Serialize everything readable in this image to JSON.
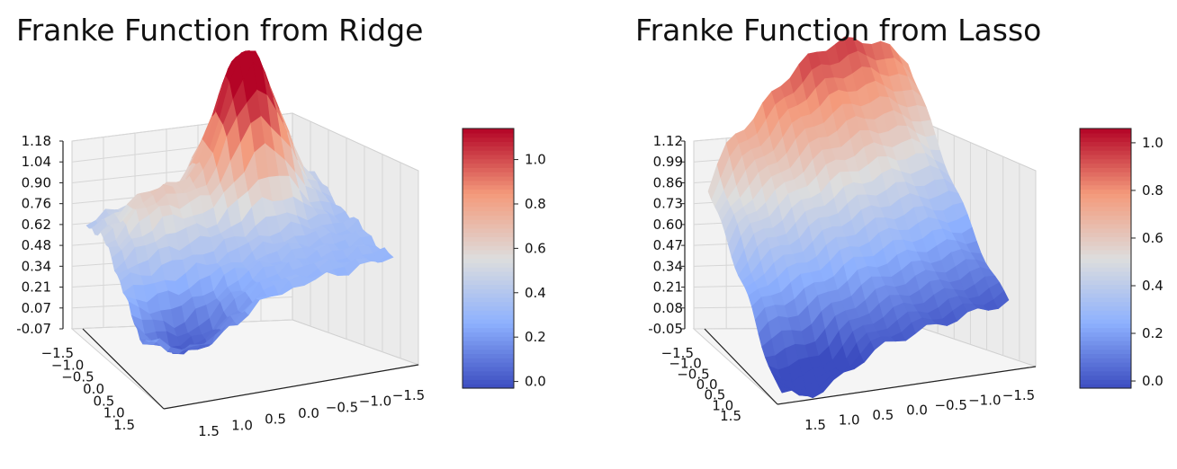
{
  "chart_data": [
    {
      "type": "surface",
      "title": "Franke Function from Ridge",
      "zticks": [
        "1.18",
        "1.04",
        "0.90",
        "0.76",
        "0.62",
        "0.48",
        "0.34",
        "0.21",
        "0.07",
        "-0.07"
      ],
      "yticks": [
        "−1.5",
        "−1.0",
        "−0.5",
        "0.0",
        "0.5",
        "1.0",
        "1.5"
      ],
      "xticks": [
        "1.5",
        "1.0",
        "0.5",
        "0.0",
        "−0.5",
        "−1.0",
        "−1.5"
      ],
      "colorbar": {
        "ticks": [
          "1.0",
          "0.8",
          "0.6",
          "0.4",
          "0.2",
          "0.0"
        ],
        "range": [
          -0.03,
          1.14
        ],
        "colormap": "coolwarm"
      },
      "surface": {
        "peak_value": 1.14,
        "min_value": -0.03,
        "shape": "single-peak"
      }
    },
    {
      "type": "surface",
      "title": "Franke Function from Lasso",
      "zticks": [
        "1.12",
        "0.99",
        "0.86",
        "0.73",
        "0.60",
        "0.47",
        "0.34",
        "0.21",
        "0.08",
        "-0.05"
      ],
      "yticks": [
        "−1.5",
        "−1.0",
        "−0.5",
        "0.0",
        "0.5",
        "1.0",
        "1.5"
      ],
      "xticks": [
        "1.5",
        "1.0",
        "0.5",
        "0.0",
        "−0.5",
        "−1.0",
        "−1.5"
      ],
      "colorbar": {
        "ticks": [
          "1.0",
          "0.8",
          "0.6",
          "0.4",
          "0.2",
          "0.0"
        ],
        "range": [
          -0.03,
          1.06
        ],
        "colormap": "coolwarm"
      },
      "surface": {
        "peak_value": 1.06,
        "min_value": -0.03,
        "shape": "ramp"
      }
    }
  ],
  "colors": {
    "cool": "#3b4cc0",
    "neutral": "#dddddd",
    "warm": "#b40426"
  }
}
